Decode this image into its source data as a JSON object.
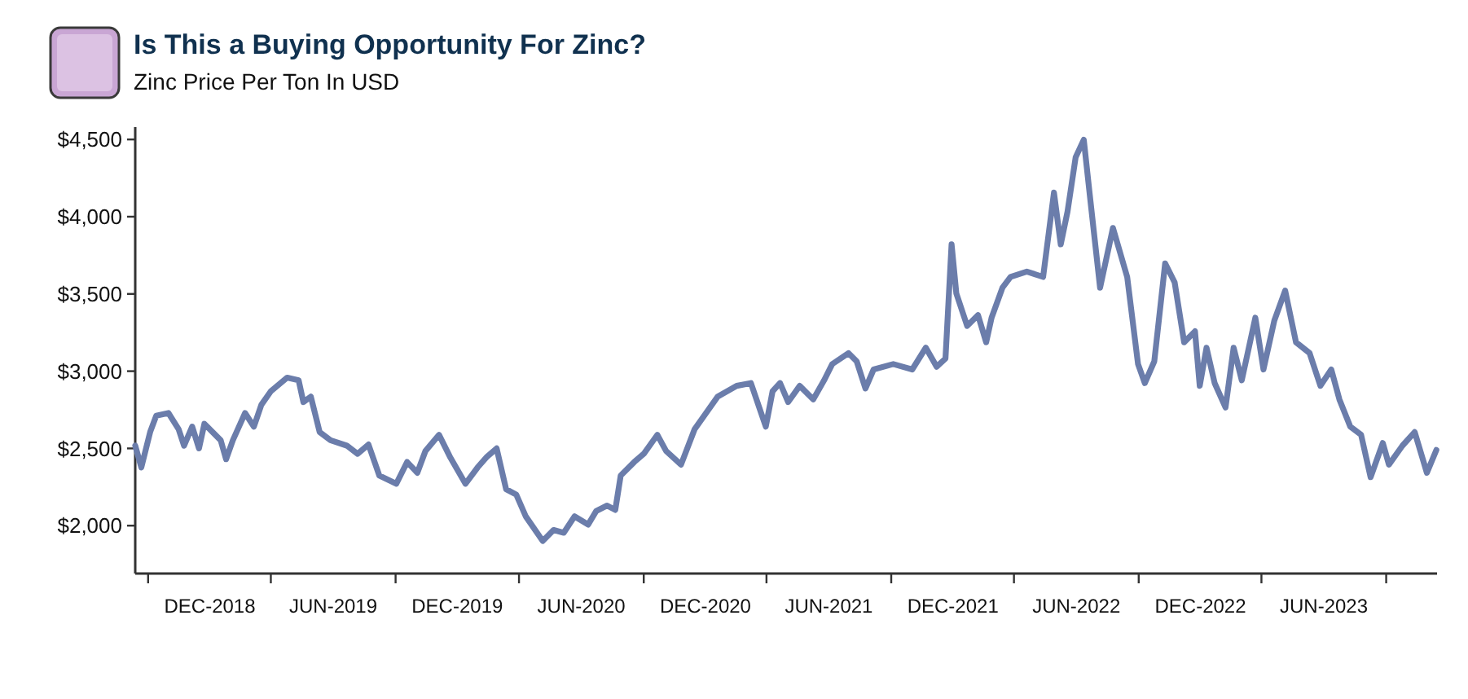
{
  "chart_data": {
    "type": "line",
    "title": "Is This a Buying Opportunity For Zinc?",
    "subtitle": "Zinc Price Per Ton In USD",
    "x": [
      "2018-08-13",
      "2018-08-22",
      "2018-09-04",
      "2018-09-13",
      "2018-10-01",
      "2018-10-16",
      "2018-10-24",
      "2018-11-05",
      "2018-11-15",
      "2018-11-23",
      "2018-12-17",
      "2018-12-25",
      "2019-01-04",
      "2019-01-22",
      "2019-02-04",
      "2019-02-15",
      "2019-03-01",
      "2019-03-25",
      "2019-04-11",
      "2019-04-18",
      "2019-04-29",
      "2019-05-12",
      "2019-05-28",
      "2019-06-21",
      "2019-07-07",
      "2019-07-23",
      "2019-08-08",
      "2019-09-02",
      "2019-09-18",
      "2019-10-03",
      "2019-10-15",
      "2019-11-04",
      "2019-11-20",
      "2019-12-13",
      "2019-12-31",
      "2020-01-14",
      "2020-01-28",
      "2020-02-11",
      "2020-02-26",
      "2020-03-11",
      "2020-04-05",
      "2020-04-21",
      "2020-05-06",
      "2020-05-22",
      "2020-06-11",
      "2020-06-23",
      "2020-07-09",
      "2020-07-21",
      "2020-07-29",
      "2020-08-18",
      "2020-09-01",
      "2020-09-21",
      "2020-10-04",
      "2020-10-26",
      "2020-11-15",
      "2020-12-19",
      "2021-01-16",
      "2021-02-06",
      "2021-02-28",
      "2021-03-10",
      "2021-03-21",
      "2021-04-02",
      "2021-04-19",
      "2021-05-09",
      "2021-05-25",
      "2021-06-06",
      "2021-06-30",
      "2021-07-12",
      "2021-07-25",
      "2021-08-06",
      "2021-09-04",
      "2021-10-02",
      "2021-10-22",
      "2021-11-07",
      "2021-11-20",
      "2021-11-29",
      "2021-12-06",
      "2021-12-22",
      "2022-01-07",
      "2022-01-19",
      "2022-01-27",
      "2022-02-12",
      "2022-02-24",
      "2022-03-20",
      "2022-04-13",
      "2022-04-29",
      "2022-05-09",
      "2022-05-19",
      "2022-05-31",
      "2022-06-12",
      "2022-06-20",
      "2022-07-06",
      "2022-07-25",
      "2022-08-15",
      "2022-08-31",
      "2022-09-10",
      "2022-09-24",
      "2022-10-10",
      "2022-10-24",
      "2022-11-07",
      "2022-11-23",
      "2022-11-30",
      "2022-12-10",
      "2022-12-22",
      "2023-01-07",
      "2023-01-19",
      "2023-01-31",
      "2023-02-20",
      "2023-03-04",
      "2023-03-20",
      "2023-04-05",
      "2023-04-21",
      "2023-05-11",
      "2023-05-27",
      "2023-06-12",
      "2023-06-24",
      "2023-07-10",
      "2023-07-26",
      "2023-08-09",
      "2023-08-27",
      "2023-09-05",
      "2023-09-25",
      "2023-10-13",
      "2023-10-31",
      "2023-11-14"
    ],
    "series": [
      {
        "color": "#6b7dab",
        "values": [
          2518,
          2377,
          2606,
          2712,
          2729,
          2624,
          2518,
          2641,
          2500,
          2659,
          2553,
          2430,
          2553,
          2729,
          2641,
          2782,
          2870,
          2958,
          2941,
          2800,
          2835,
          2606,
          2553,
          2518,
          2465,
          2525,
          2324,
          2271,
          2412,
          2342,
          2483,
          2588,
          2447,
          2271,
          2377,
          2447,
          2500,
          2236,
          2201,
          2060,
          1901,
          1972,
          1954,
          2060,
          2007,
          2095,
          2130,
          2102,
          2324,
          2412,
          2465,
          2588,
          2483,
          2395,
          2624,
          2835,
          2905,
          2923,
          2641,
          2870,
          2923,
          2800,
          2905,
          2817,
          2941,
          3046,
          3117,
          3064,
          2888,
          3011,
          3046,
          3011,
          3152,
          3029,
          3082,
          3821,
          3504,
          3293,
          3363,
          3187,
          3346,
          3540,
          3610,
          3645,
          3610,
          4156,
          3821,
          4033,
          4385,
          4498,
          4174,
          3540,
          3927,
          3610,
          3046,
          2923,
          3064,
          3698,
          3575,
          3187,
          3258,
          2905,
          3152,
          2923,
          2765,
          3152,
          2941,
          3346,
          3011,
          3328,
          3522,
          3187,
          3117,
          2905,
          3011,
          2817,
          2641,
          2588,
          2314,
          2535,
          2395,
          2518,
          2606,
          2342,
          2490
        ]
      }
    ],
    "xlim": [
      "2018-08-13",
      "2023-11-15"
    ],
    "xticks": [
      {
        "value": "2018-09-01",
        "label": null
      },
      {
        "value": "2018-12-01",
        "label": "DEC-2018"
      },
      {
        "value": "2019-03-01",
        "label": null
      },
      {
        "value": "2019-06-01",
        "label": "JUN-2019"
      },
      {
        "value": "2019-09-01",
        "label": null
      },
      {
        "value": "2019-12-01",
        "label": "DEC-2019"
      },
      {
        "value": "2020-03-01",
        "label": null
      },
      {
        "value": "2020-06-01",
        "label": "JUN-2020"
      },
      {
        "value": "2020-09-01",
        "label": null
      },
      {
        "value": "2020-12-01",
        "label": "DEC-2020"
      },
      {
        "value": "2021-03-01",
        "label": null
      },
      {
        "value": "2021-06-01",
        "label": "JUN-2021"
      },
      {
        "value": "2021-09-01",
        "label": null
      },
      {
        "value": "2021-12-01",
        "label": "DEC-2021"
      },
      {
        "value": "2022-03-01",
        "label": null
      },
      {
        "value": "2022-06-01",
        "label": "JUN-2022"
      },
      {
        "value": "2022-09-01",
        "label": null
      },
      {
        "value": "2022-12-01",
        "label": "DEC-2022"
      },
      {
        "value": "2023-03-01",
        "label": null
      },
      {
        "value": "2023-06-01",
        "label": "JUN-2023"
      },
      {
        "value": "2023-09-01",
        "label": null
      }
    ],
    "ylim": [
      1690,
      4580
    ],
    "yticks": [
      {
        "value": 2000,
        "label": "$2,000"
      },
      {
        "value": 2500,
        "label": "$2,500"
      },
      {
        "value": 3000,
        "label": "$3,000"
      },
      {
        "value": 3500,
        "label": "$3,500"
      },
      {
        "value": 4000,
        "label": "$4,000"
      },
      {
        "value": 4500,
        "label": "$4,500"
      }
    ],
    "marker": "none",
    "line_style": "solid"
  }
}
